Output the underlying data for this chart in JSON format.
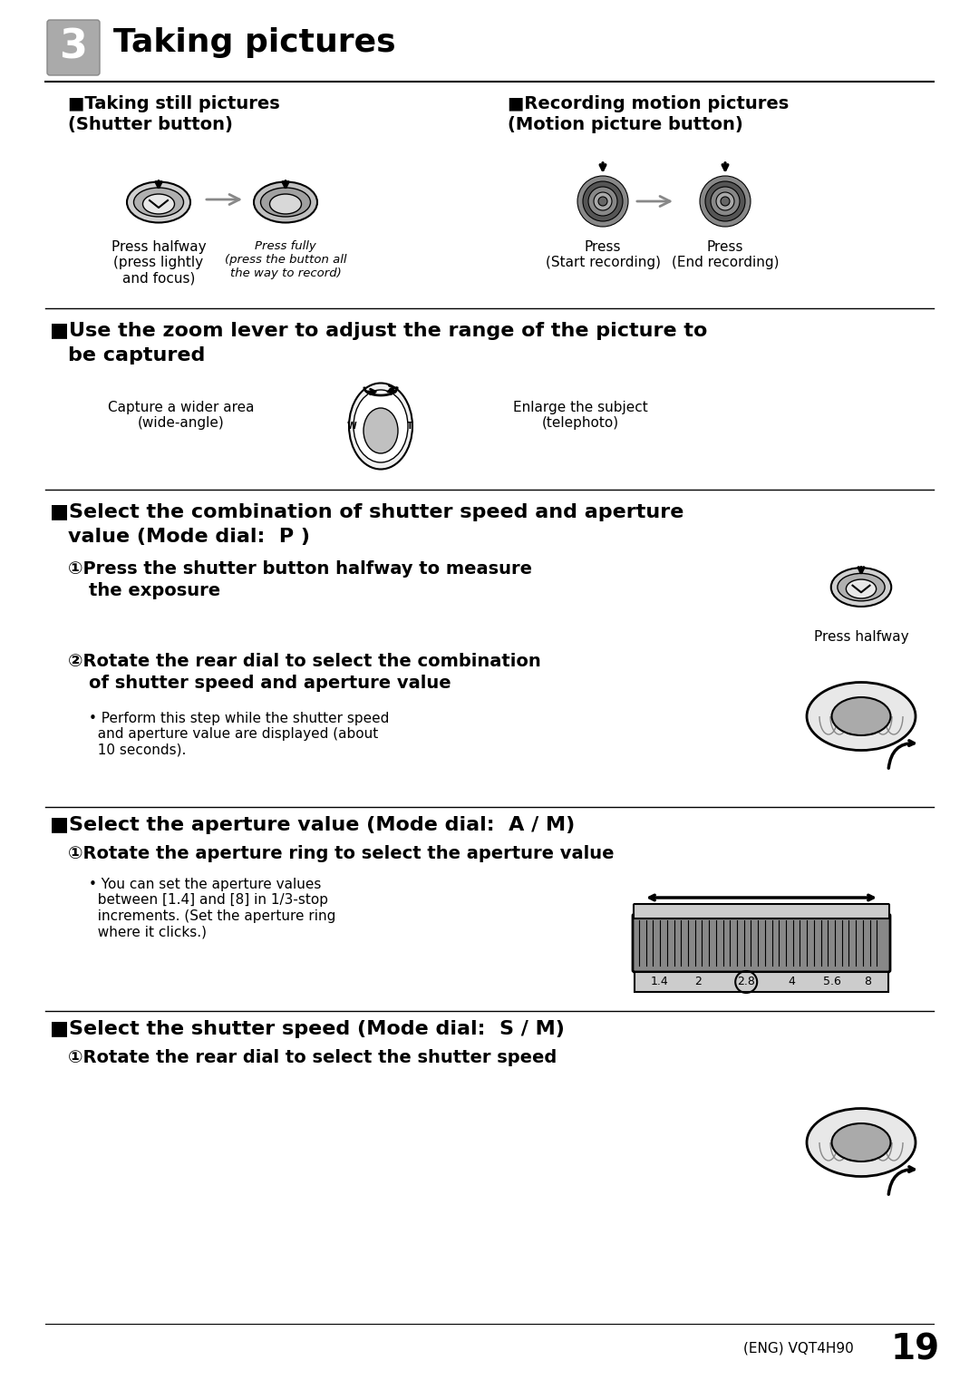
{
  "bg_color": "#ffffff",
  "text_color": "#000000",
  "page_number": "19",
  "footer_text": "(ENG) VQT4H90",
  "title": "Taking pictures",
  "section1_header": "■Taking still pictures\n(Shutter button)",
  "section1_header2": "■Recording motion pictures\n(Motion picture button)",
  "section2_header": "■Use the zoom lever to adjust the range of the picture to\n  be captured",
  "section3_header": "■Select the combination of shutter speed and aperture\n  value (Mode dial:  P )",
  "section3_sub1": "①Press the shutter button halfway to measure\n  the exposure",
  "section3_sub2": "②Rotate the rear dial to select the combination\n  of shutter speed and aperture value",
  "section3_bullet": "• Perform this step while the shutter speed\n  and aperture value are displayed (about\n  10 seconds).",
  "section4_header": "■Select the aperture value (Mode dial:  A / M)",
  "section4_sub1": "①Rotate the aperture ring to select the aperture value",
  "section4_bullet": "• You can set the aperture values\n  between [1.4] and [8] in 1/3-stop\n  increments. (Set the aperture ring\n  where it clicks.)",
  "section5_header": "■Select the shutter speed (Mode dial:  S / M)",
  "section5_sub1": "①Rotate the rear dial to select the shutter speed",
  "press_halfway": "Press halfway\n(press lightly\nand focus)",
  "press_fully": "Press fully\n(press the button all\nthe way to record)",
  "press_start": "Press\n(Start recording)",
  "press_end": "Press\n(End recording)",
  "wide_angle": "Capture a wider area\n(wide-angle)",
  "telephoto": "Enlarge the subject\n(telephoto)",
  "press_halfway2": "Press halfway",
  "aperture_values": [
    "1.4",
    "2",
    "2.8",
    "4",
    "5.6",
    "8"
  ]
}
